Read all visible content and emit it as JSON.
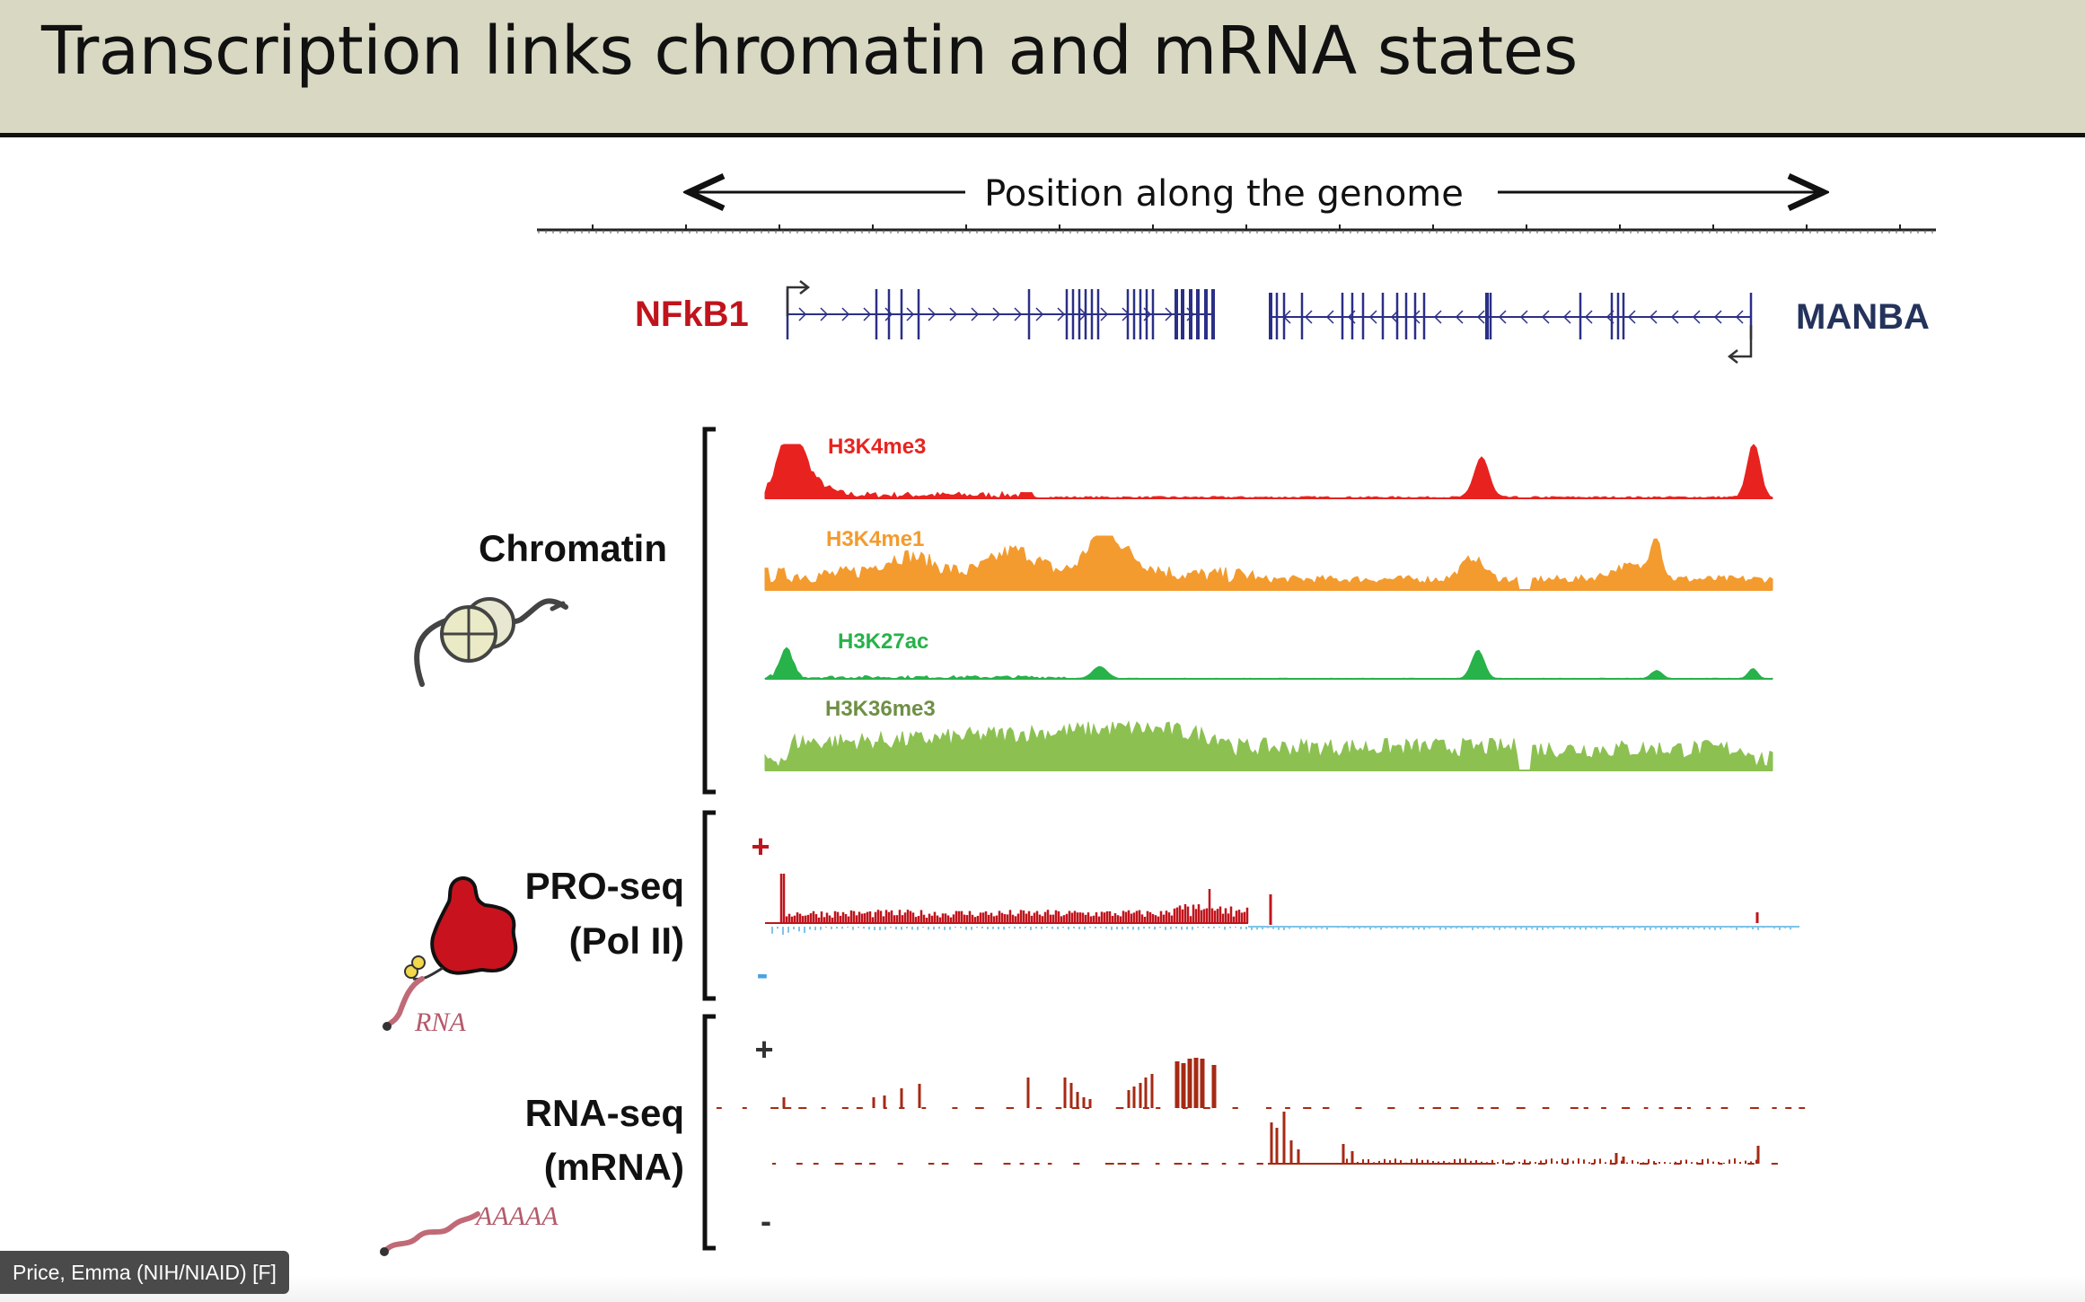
{
  "slide": {
    "title": "Transcription links chromatin and mRNA states"
  },
  "genome_axis": {
    "label": "Position along the genome"
  },
  "genes": {
    "left": "NFkB1",
    "right": "MANBA"
  },
  "colors": {
    "nfkb1": "#c0141c",
    "manba": "#24335c",
    "gene_model": "#2b2f86",
    "h3k4me3": "#e8231f",
    "h3k4me1": "#f39b2e",
    "h3k27ac": "#27b24a",
    "h3k36me3": "#8cc152",
    "proseq_plus": "#c0141c",
    "proseq_minus": "#7fc4e8",
    "rnaseq": "#a52a14",
    "title_bar": "#d9d8c3",
    "pol2": "#c8131e",
    "rna": "#c06a78"
  },
  "sections": {
    "chromatin": {
      "label": "Chromatin"
    },
    "proseq": {
      "label_line1": "PRO-seq",
      "label_line2": "(Pol II)",
      "plus": "+",
      "minus": "-"
    },
    "rnaseq": {
      "label_line1": "RNA-seq",
      "label_line2": "(mRNA)",
      "plus": "+",
      "minus": "-"
    }
  },
  "tracks": {
    "h3k4me3": "H3K4me3",
    "h3k4me1": "H3K4me1",
    "h3k27ac": "H3K27ac",
    "h3k36me3": "H3K36me3"
  },
  "cartoons": {
    "nucleosome_icon": "nucleosome-icon",
    "pol2_icon": "rna-polymerase-icon",
    "rna_label": "RNA",
    "mrna_label": "AAAAA"
  },
  "presenter": {
    "name": "Price, Emma (NIH/NIAID) [F]"
  }
}
